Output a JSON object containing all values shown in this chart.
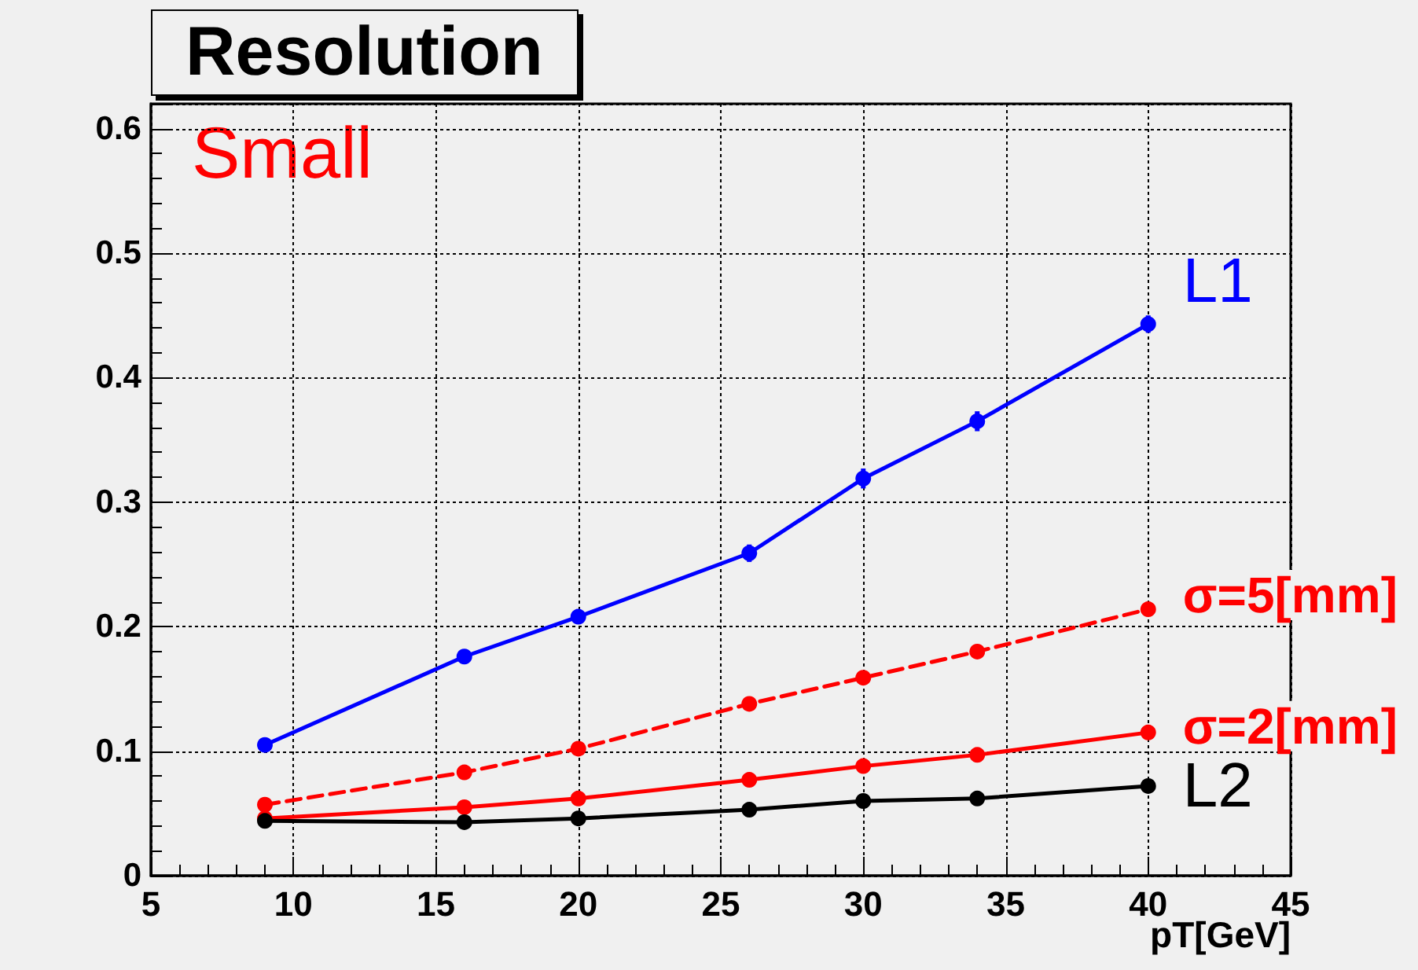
{
  "chart_data": {
    "type": "line",
    "title": "Resolution",
    "xlabel": "pT[GeV]",
    "x": [
      9,
      16,
      20,
      26,
      30,
      34,
      40
    ],
    "series": [
      {
        "name": "L1",
        "color": "#0000ff",
        "values": [
          0.105,
          0.176,
          0.208,
          0.259,
          0.319,
          0.365,
          0.443
        ],
        "errors": [
          null,
          null,
          null,
          0.007,
          0.008,
          0.008,
          0.007
        ]
      },
      {
        "name": "σ=5[mm]",
        "color": "#ff0000",
        "line_style": "dashed",
        "values": [
          0.057,
          0.083,
          0.102,
          0.138,
          0.159,
          0.18,
          0.214
        ]
      },
      {
        "name": "σ=2[mm]",
        "color": "#ff0000",
        "values": [
          0.046,
          0.055,
          0.062,
          0.077,
          0.088,
          0.097,
          0.115
        ]
      },
      {
        "name": "L2",
        "color": "#000000",
        "values": [
          0.044,
          0.043,
          0.046,
          0.053,
          0.06,
          0.062,
          0.072
        ]
      }
    ],
    "xlim": [
      5,
      45
    ],
    "xticks": [
      5,
      10,
      15,
      20,
      25,
      30,
      35,
      40,
      45
    ],
    "ylim": [
      0,
      0.62
    ],
    "yticks": [
      0,
      0.1,
      0.2,
      0.3,
      0.4,
      0.5,
      0.6
    ],
    "grid": true,
    "marker": "circle",
    "line_style": "solid",
    "annotations": [
      "Small"
    ]
  }
}
